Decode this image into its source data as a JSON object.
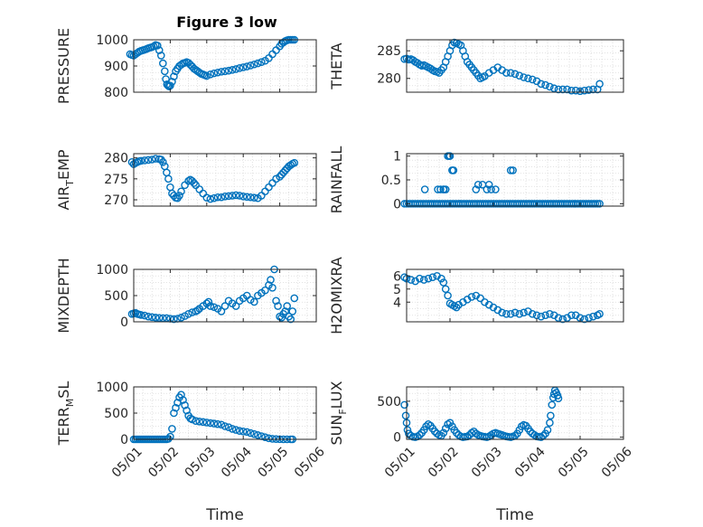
{
  "figure": {
    "title": "Figure 3 low",
    "xlabel": "Time",
    "date_ticks": [
      "05/01",
      "05/02",
      "05/03",
      "05/04",
      "05/05",
      "05/06"
    ],
    "colors": {
      "marker": "#0072BD",
      "axis": "#262626",
      "grid": "#d9d9d9",
      "background": "#ffffff"
    }
  },
  "chart_data": [
    {
      "type": "scatter",
      "ylabel": "PRESSURE",
      "title": "Figure 3 low",
      "xlim": [
        "05/01",
        "05/06"
      ],
      "ylim": [
        800,
        1000
      ],
      "yticks": [
        "800",
        "900",
        "1000"
      ],
      "show_xticks": false,
      "grid": true,
      "x": [
        0.9,
        0.95,
        1.0,
        1.05,
        1.1,
        1.15,
        1.2,
        1.25,
        1.3,
        1.35,
        1.4,
        1.45,
        1.5,
        1.55,
        1.6,
        1.65,
        1.7,
        1.75,
        1.8,
        1.85,
        1.88,
        1.91,
        1.94,
        1.97,
        2.0,
        2.05,
        2.1,
        2.15,
        2.2,
        2.25,
        2.3,
        2.35,
        2.4,
        2.45,
        2.5,
        2.55,
        2.6,
        2.65,
        2.7,
        2.75,
        2.8,
        2.85,
        2.9,
        2.95,
        3.0,
        3.1,
        3.2,
        3.3,
        3.4,
        3.5,
        3.6,
        3.7,
        3.8,
        3.9,
        4.0,
        4.1,
        4.2,
        4.3,
        4.4,
        4.5,
        4.6,
        4.7,
        4.8,
        4.9,
        5.0,
        5.05,
        5.1,
        5.15,
        5.2,
        5.25,
        5.3,
        5.35,
        5.4
      ],
      "y": [
        945,
        942,
        940,
        945,
        950,
        955,
        958,
        960,
        962,
        965,
        968,
        970,
        972,
        975,
        980,
        978,
        960,
        940,
        910,
        880,
        850,
        830,
        825,
        822,
        825,
        840,
        860,
        880,
        890,
        900,
        905,
        910,
        912,
        915,
        912,
        905,
        898,
        890,
        885,
        880,
        875,
        870,
        868,
        865,
        862,
        868,
        872,
        875,
        878,
        880,
        882,
        885,
        888,
        892,
        895,
        898,
        902,
        906,
        910,
        915,
        920,
        930,
        945,
        960,
        975,
        985,
        990,
        995,
        998,
        1000,
        1000,
        1000,
        1000
      ]
    },
    {
      "type": "scatter",
      "ylabel": "THETA",
      "xlim": [
        "05/01",
        "05/06"
      ],
      "ylim": [
        277.5,
        287
      ],
      "yticks": [
        "280",
        "285"
      ],
      "show_xticks": false,
      "grid": true,
      "x": [
        0.95,
        1.0,
        1.05,
        1.1,
        1.15,
        1.2,
        1.25,
        1.3,
        1.35,
        1.4,
        1.45,
        1.5,
        1.55,
        1.6,
        1.65,
        1.7,
        1.75,
        1.8,
        1.85,
        1.9,
        1.95,
        2.0,
        2.05,
        2.1,
        2.15,
        2.2,
        2.25,
        2.3,
        2.35,
        2.4,
        2.45,
        2.5,
        2.55,
        2.6,
        2.65,
        2.7,
        2.75,
        2.8,
        2.9,
        3.0,
        3.1,
        3.2,
        3.3,
        3.4,
        3.5,
        3.6,
        3.7,
        3.8,
        3.9,
        4.0,
        4.1,
        4.2,
        4.3,
        4.4,
        4.5,
        4.6,
        4.7,
        4.8,
        4.9,
        5.0,
        5.1,
        5.2,
        5.3,
        5.4,
        5.45
      ],
      "y": [
        283.5,
        283.6,
        283.4,
        283.5,
        283.3,
        283.0,
        282.8,
        282.5,
        282.3,
        282.4,
        282.2,
        282.0,
        281.8,
        281.5,
        281.3,
        281.2,
        281.0,
        281.5,
        282.0,
        283.0,
        284.0,
        285.0,
        286.0,
        286.5,
        286.4,
        286.2,
        286.0,
        285.0,
        284.0,
        283.0,
        282.5,
        282.0,
        281.5,
        281.0,
        280.5,
        280.0,
        280.2,
        280.4,
        281.0,
        281.5,
        282.0,
        281.5,
        281.0,
        281.0,
        280.8,
        280.5,
        280.2,
        280.0,
        279.8,
        279.5,
        279.0,
        278.8,
        278.5,
        278.2,
        278.0,
        278.0,
        278.0,
        277.8,
        277.8,
        277.7,
        277.8,
        277.9,
        278.0,
        278.0,
        279.0
      ]
    },
    {
      "type": "scatter",
      "ylabel": "AIR",
      "ylabel_sub": "T",
      "ylabel_rest": "EMP",
      "xlim": [
        "05/01",
        "05/06"
      ],
      "ylim": [
        268.5,
        281
      ],
      "yticks": [
        "270",
        "275",
        "280"
      ],
      "show_xticks": false,
      "grid": true,
      "x": [
        0.95,
        1.0,
        1.05,
        1.1,
        1.15,
        1.2,
        1.3,
        1.4,
        1.5,
        1.6,
        1.7,
        1.75,
        1.8,
        1.85,
        1.9,
        1.95,
        2.0,
        2.05,
        2.1,
        2.15,
        2.2,
        2.25,
        2.3,
        2.4,
        2.5,
        2.55,
        2.6,
        2.65,
        2.7,
        2.8,
        2.9,
        3.0,
        3.1,
        3.2,
        3.3,
        3.4,
        3.5,
        3.6,
        3.7,
        3.8,
        3.9,
        4.0,
        4.1,
        4.2,
        4.3,
        4.4,
        4.5,
        4.6,
        4.7,
        4.8,
        4.9,
        5.0,
        5.05,
        5.1,
        5.15,
        5.2,
        5.25,
        5.3,
        5.35,
        5.4
      ],
      "y": [
        279.0,
        278.5,
        278.8,
        279.0,
        279.2,
        279.3,
        279.4,
        279.5,
        279.6,
        279.8,
        279.7,
        279.6,
        279.0,
        278.0,
        276.5,
        275.0,
        273.0,
        271.5,
        271.0,
        270.5,
        270.4,
        271.0,
        272.0,
        273.5,
        274.5,
        274.8,
        274.5,
        274.0,
        273.5,
        272.5,
        271.5,
        270.5,
        270.2,
        270.4,
        270.6,
        270.6,
        270.8,
        270.9,
        271.0,
        271.1,
        271.0,
        270.8,
        270.7,
        270.6,
        270.5,
        270.4,
        271.0,
        272.0,
        273.0,
        274.0,
        275.0,
        275.5,
        276.0,
        276.5,
        277.0,
        277.5,
        278.0,
        278.3,
        278.6,
        278.8
      ]
    },
    {
      "type": "scatter",
      "ylabel": "RAINFALL",
      "xlim": [
        "05/01",
        "05/06"
      ],
      "ylim": [
        -0.05,
        1.05
      ],
      "yticks": [
        "0",
        "0.5",
        "1"
      ],
      "show_xticks": false,
      "grid": true,
      "x": [
        0.95,
        1.0,
        1.05,
        1.1,
        1.15,
        1.2,
        1.25,
        1.3,
        1.35,
        1.4,
        1.45,
        1.5,
        1.55,
        1.6,
        1.65,
        1.7,
        1.75,
        1.8,
        1.85,
        1.9,
        1.95,
        2.0,
        2.05,
        2.1,
        2.15,
        2.2,
        2.25,
        2.3,
        2.35,
        2.4,
        2.45,
        2.5,
        2.55,
        2.6,
        2.65,
        2.7,
        2.75,
        2.8,
        2.85,
        2.9,
        2.95,
        3.0,
        3.05,
        3.1,
        3.15,
        3.2,
        3.25,
        3.3,
        3.35,
        3.4,
        3.45,
        3.5,
        3.55,
        3.6,
        3.65,
        3.7,
        3.75,
        3.8,
        3.85,
        3.9,
        3.95,
        4.0,
        4.05,
        4.1,
        4.15,
        4.2,
        4.25,
        4.3,
        4.35,
        4.4,
        4.45,
        4.5,
        4.55,
        4.6,
        4.65,
        4.7,
        4.75,
        4.8,
        4.85,
        4.9,
        4.95,
        5.0,
        5.05,
        5.1,
        5.15,
        5.2,
        5.25,
        5.3,
        5.35,
        5.4,
        5.45,
        1.42,
        1.72,
        1.78,
        1.9,
        1.85,
        1.95,
        1.98,
        2.0,
        2.05,
        2.08,
        1.86,
        2.6,
        2.65,
        2.75,
        2.85,
        2.9,
        2.95,
        3.05,
        3.4,
        3.45
      ],
      "y": [
        0,
        0,
        0,
        0,
        0,
        0,
        0,
        0,
        0,
        0,
        0,
        0,
        0,
        0,
        0,
        0,
        0,
        0,
        0,
        0,
        0,
        0,
        0,
        0,
        0,
        0,
        0,
        0,
        0,
        0,
        0,
        0,
        0,
        0,
        0,
        0,
        0,
        0,
        0,
        0,
        0,
        0,
        0,
        0,
        0,
        0,
        0,
        0,
        0,
        0,
        0,
        0,
        0,
        0,
        0,
        0,
        0,
        0,
        0,
        0,
        0,
        0,
        0,
        0,
        0,
        0,
        0,
        0,
        0,
        0,
        0,
        0,
        0,
        0,
        0,
        0,
        0,
        0,
        0,
        0,
        0,
        0,
        0,
        0,
        0,
        0,
        0,
        0,
        0,
        0,
        0,
        0.3,
        0.3,
        0.3,
        0.3,
        0.3,
        1.0,
        1.0,
        1.0,
        0.7,
        0.7,
        0.3,
        0.3,
        0.4,
        0.4,
        0.3,
        0.4,
        0.3,
        0.3,
        0.7,
        0.7
      ]
    },
    {
      "type": "scatter",
      "ylabel": "MIXDEPTH",
      "xlim": [
        "05/01",
        "05/06"
      ],
      "ylim": [
        0,
        1000
      ],
      "yticks": [
        "0",
        "500",
        "1000"
      ],
      "show_xticks": false,
      "grid": true,
      "x": [
        0.95,
        1.0,
        1.05,
        1.1,
        1.15,
        1.2,
        1.3,
        1.4,
        1.5,
        1.6,
        1.7,
        1.8,
        1.9,
        2.0,
        2.1,
        2.2,
        2.3,
        2.4,
        2.5,
        2.6,
        2.7,
        2.75,
        2.8,
        2.9,
        3.0,
        3.05,
        3.1,
        3.2,
        3.3,
        3.4,
        3.5,
        3.6,
        3.7,
        3.8,
        3.9,
        4.0,
        4.1,
        4.2,
        4.3,
        4.4,
        4.5,
        4.6,
        4.7,
        4.75,
        4.8,
        4.85,
        4.9,
        4.95,
        5.0,
        5.05,
        5.1,
        5.15,
        5.2,
        5.25,
        5.3,
        5.35,
        5.4
      ],
      "y": [
        150,
        160,
        170,
        150,
        140,
        130,
        120,
        100,
        90,
        80,
        75,
        70,
        70,
        60,
        50,
        60,
        80,
        110,
        150,
        180,
        200,
        220,
        250,
        300,
        350,
        380,
        300,
        280,
        250,
        200,
        300,
        400,
        350,
        300,
        400,
        450,
        500,
        420,
        380,
        500,
        550,
        600,
        700,
        800,
        650,
        1000,
        400,
        300,
        100,
        80,
        150,
        200,
        300,
        100,
        50,
        200,
        450
      ]
    },
    {
      "type": "scatter",
      "ylabel": "H2OMIXRA",
      "xlim": [
        "05/01",
        "05/06"
      ],
      "ylim": [
        2.5,
        6.5
      ],
      "yticks": [
        "4",
        "5",
        "6"
      ],
      "show_xticks": false,
      "grid": true,
      "x": [
        0.95,
        1.0,
        1.1,
        1.2,
        1.3,
        1.4,
        1.5,
        1.6,
        1.7,
        1.8,
        1.85,
        1.9,
        1.95,
        2.0,
        2.05,
        2.1,
        2.15,
        2.2,
        2.3,
        2.4,
        2.5,
        2.6,
        2.7,
        2.8,
        2.9,
        3.0,
        3.1,
        3.2,
        3.3,
        3.4,
        3.5,
        3.6,
        3.7,
        3.8,
        3.9,
        4.0,
        4.1,
        4.2,
        4.3,
        4.4,
        4.5,
        4.6,
        4.7,
        4.8,
        4.9,
        5.0,
        5.1,
        5.2,
        5.3,
        5.4,
        5.45
      ],
      "y": [
        5.9,
        5.8,
        5.7,
        5.6,
        5.8,
        5.7,
        5.8,
        5.9,
        6.0,
        5.8,
        5.5,
        5.0,
        4.5,
        3.9,
        3.8,
        3.7,
        3.6,
        3.8,
        4.0,
        4.2,
        4.4,
        4.5,
        4.3,
        4.0,
        3.8,
        3.6,
        3.4,
        3.2,
        3.1,
        3.1,
        3.2,
        3.1,
        3.2,
        3.3,
        3.1,
        3.0,
        2.9,
        3.0,
        3.1,
        3.0,
        2.8,
        2.7,
        2.8,
        3.0,
        3.0,
        2.8,
        2.7,
        2.8,
        2.9,
        3.0,
        3.1
      ]
    },
    {
      "type": "scatter",
      "ylabel": "TERR",
      "ylabel_sub": "M",
      "ylabel_rest": "SL",
      "xlim": [
        "05/01",
        "05/06"
      ],
      "ylim": [
        0,
        1000
      ],
      "yticks": [
        "0",
        "500",
        "1000"
      ],
      "show_xticks": true,
      "xticks": [
        "05/01",
        "05/02",
        "05/03",
        "05/04",
        "05/05",
        "05/06"
      ],
      "xlabel": "Time",
      "grid": true,
      "x": [
        1.0,
        1.05,
        1.1,
        1.15,
        1.2,
        1.25,
        1.3,
        1.35,
        1.4,
        1.45,
        1.5,
        1.55,
        1.6,
        1.65,
        1.7,
        1.75,
        1.8,
        1.85,
        1.9,
        1.95,
        2.0,
        2.05,
        2.1,
        2.15,
        2.2,
        2.25,
        2.3,
        2.35,
        2.4,
        2.45,
        2.5,
        2.55,
        2.6,
        2.7,
        2.8,
        2.9,
        3.0,
        3.1,
        3.2,
        3.3,
        3.4,
        3.5,
        3.6,
        3.7,
        3.8,
        3.9,
        4.0,
        4.1,
        4.2,
        4.3,
        4.4,
        4.5,
        4.6,
        4.7,
        4.8,
        4.9,
        5.0,
        5.1,
        5.2,
        5.3,
        5.35
      ],
      "y": [
        0,
        0,
        0,
        0,
        0,
        0,
        0,
        0,
        0,
        0,
        0,
        0,
        0,
        0,
        0,
        0,
        0,
        0,
        0,
        10,
        50,
        200,
        500,
        600,
        700,
        800,
        850,
        750,
        650,
        550,
        450,
        400,
        380,
        350,
        340,
        330,
        320,
        310,
        300,
        290,
        280,
        250,
        230,
        200,
        180,
        160,
        150,
        140,
        120,
        100,
        80,
        60,
        40,
        20,
        10,
        5,
        2,
        0,
        0,
        0,
        0
      ]
    },
    {
      "type": "scatter",
      "ylabel": "SUN",
      "ylabel_sub": "F",
      "ylabel_rest": "LUX",
      "xlim": [
        "05/01",
        "05/06"
      ],
      "ylim": [
        -30,
        700
      ],
      "yticks": [
        "0",
        "500"
      ],
      "show_xticks": true,
      "xticks": [
        "05/01",
        "05/02",
        "05/03",
        "05/04",
        "05/05",
        "05/06"
      ],
      "xlabel": "Time",
      "grid": true,
      "x": [
        0.95,
        0.98,
        1.0,
        1.02,
        1.05,
        1.1,
        1.15,
        1.2,
        1.25,
        1.3,
        1.35,
        1.4,
        1.45,
        1.5,
        1.55,
        1.6,
        1.65,
        1.7,
        1.75,
        1.8,
        1.85,
        1.9,
        1.95,
        2.0,
        2.05,
        2.1,
        2.15,
        2.2,
        2.25,
        2.3,
        2.35,
        2.4,
        2.45,
        2.5,
        2.55,
        2.6,
        2.65,
        2.7,
        2.75,
        2.8,
        2.85,
        2.9,
        2.95,
        3.0,
        3.05,
        3.1,
        3.15,
        3.2,
        3.25,
        3.3,
        3.35,
        3.4,
        3.45,
        3.5,
        3.55,
        3.6,
        3.65,
        3.7,
        3.75,
        3.8,
        3.85,
        3.9,
        3.95,
        4.0,
        4.05,
        4.1,
        4.15,
        4.2,
        4.25,
        4.3,
        4.32,
        4.35,
        4.38,
        4.4,
        4.42,
        4.45,
        4.48,
        4.5
      ],
      "y": [
        450,
        300,
        200,
        100,
        50,
        20,
        5,
        0,
        10,
        30,
        60,
        100,
        150,
        180,
        160,
        120,
        80,
        50,
        30,
        20,
        60,
        120,
        180,
        200,
        150,
        100,
        60,
        30,
        10,
        0,
        5,
        10,
        30,
        60,
        80,
        50,
        30,
        20,
        10,
        5,
        0,
        10,
        30,
        50,
        60,
        50,
        40,
        30,
        20,
        10,
        5,
        0,
        10,
        20,
        50,
        100,
        150,
        170,
        160,
        120,
        80,
        50,
        30,
        10,
        5,
        0,
        20,
        50,
        100,
        200,
        300,
        450,
        550,
        600,
        650,
        620,
        580,
        540
      ]
    }
  ]
}
